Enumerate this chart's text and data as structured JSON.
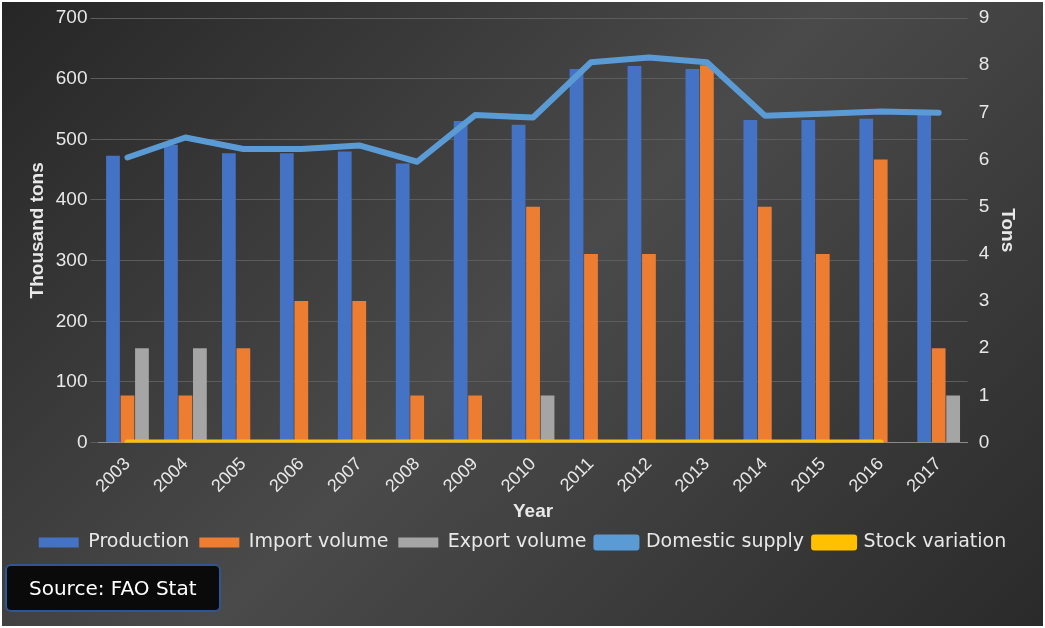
{
  "chart_data": {
    "type": "bar",
    "categories": [
      "2003",
      "2004",
      "2005",
      "2006",
      "2007",
      "2008",
      "2009",
      "2010",
      "2011",
      "2012",
      "2013",
      "2014",
      "2015",
      "2016",
      "2017"
    ],
    "series": [
      {
        "name": "Production",
        "color": "#4472c4",
        "values": [
          473,
          491,
          477,
          477,
          480,
          460,
          530,
          524,
          616,
          621,
          616,
          532,
          532,
          534,
          540
        ]
      },
      {
        "name": "Import volume",
        "axis": "y2",
        "color": "#ed7d31",
        "values": [
          1,
          1,
          2,
          3,
          3,
          1,
          1,
          5,
          4,
          4,
          8,
          5,
          4,
          6,
          2
        ]
      },
      {
        "name": "Export volume",
        "axis": "y2",
        "color": "#a5a5a5",
        "values": [
          2,
          2,
          0,
          0,
          0,
          0,
          0,
          1,
          0,
          0,
          0,
          0,
          0,
          0,
          1
        ]
      },
      {
        "name": "Domestic supply",
        "type": "line",
        "color": "#5b9bd5",
        "values": [
          470,
          503,
          484,
          484,
          490,
          463,
          540,
          536,
          627,
          635,
          627,
          539,
          542,
          546,
          544
        ]
      },
      {
        "name": "Stock variation",
        "type": "line",
        "axis": "y2",
        "color": "#ffc000",
        "values": [
          0,
          0,
          0,
          0,
          0,
          0,
          0,
          0,
          0,
          0,
          0,
          0,
          0,
          0,
          null
        ]
      }
    ],
    "xlabel": "Year",
    "ylabel": "Thousand tons",
    "y2label": "Tons",
    "ylim": [
      0,
      700
    ],
    "yticks": [
      0,
      100,
      200,
      300,
      400,
      500,
      600,
      700
    ],
    "y2lim": [
      0,
      9
    ],
    "y2ticks": [
      0,
      1,
      2,
      3,
      4,
      5,
      6,
      7,
      8,
      9
    ],
    "grid": "y",
    "legend": "bottom",
    "marker": "none",
    "annotations": [
      "Source: FAO Stat"
    ]
  }
}
